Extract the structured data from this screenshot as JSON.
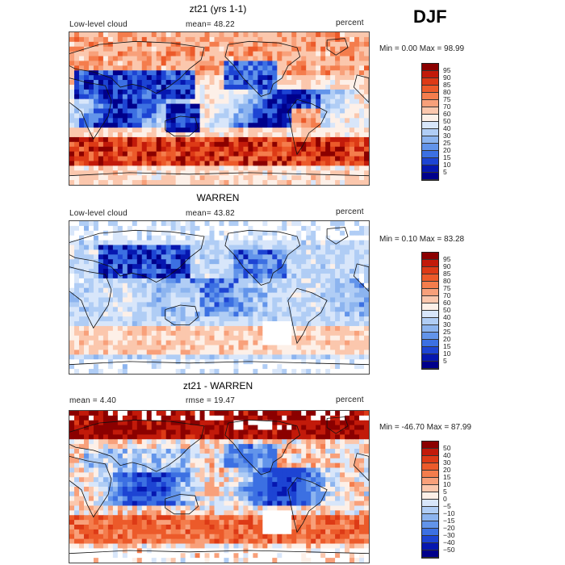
{
  "season": "DJF",
  "panels": [
    {
      "title": "zt21 (yrs 1-1)",
      "left_label": "Low-level cloud",
      "center_label": "mean=  48.22",
      "right_label": "percent",
      "minmax": "Min =   0.00 Max =  98.99",
      "colorbar": {
        "labels": [
          "95",
          "90",
          "85",
          "80",
          "75",
          "70",
          "60",
          "50",
          "40",
          "30",
          "25",
          "20",
          "15",
          "10",
          "5"
        ],
        "colors": [
          "#8b0000",
          "#c21a0a",
          "#dd3a16",
          "#ec5a2a",
          "#f47d4d",
          "#f8a07a",
          "#fbc7ad",
          "#fdf0e8",
          "#d8e6fa",
          "#b0cdf5",
          "#8cb4ef",
          "#6294ea",
          "#3c70e2",
          "#1d44d3",
          "#0617b0",
          "#00008b"
        ]
      },
      "variant": "model"
    },
    {
      "title": "WARREN",
      "left_label": "Low-level cloud",
      "center_label": "mean=  43.82",
      "right_label": "percent",
      "minmax": "Min =   0.10 Max =  83.28",
      "colorbar": {
        "labels": [
          "95",
          "90",
          "85",
          "80",
          "75",
          "70",
          "60",
          "50",
          "40",
          "30",
          "25",
          "20",
          "15",
          "10",
          "5"
        ],
        "colors": [
          "#8b0000",
          "#c21a0a",
          "#dd3a16",
          "#ec5a2a",
          "#f47d4d",
          "#f8a07a",
          "#fbc7ad",
          "#fdf0e8",
          "#d8e6fa",
          "#b0cdf5",
          "#8cb4ef",
          "#6294ea",
          "#3c70e2",
          "#1d44d3",
          "#0617b0",
          "#00008b"
        ]
      },
      "variant": "obs"
    },
    {
      "title": "zt21 - WARREN",
      "left_label": "mean =    4.40",
      "center_label": "rmse =  19.47",
      "right_label": "percent",
      "minmax": "Min = -46.70 Max =  87.99",
      "colorbar": {
        "labels": [
          "50",
          "40",
          "30",
          "20",
          "15",
          "10",
          "5",
          "0",
          "−5",
          "−10",
          "−15",
          "−20",
          "−30",
          "−40",
          "−50"
        ],
        "colors": [
          "#8b0000",
          "#c21a0a",
          "#dd3a16",
          "#ec5a2a",
          "#f47d4d",
          "#f8a07a",
          "#fbc7ad",
          "#fdf0e8",
          "#d8e6fa",
          "#b0cdf5",
          "#8cb4ef",
          "#6294ea",
          "#3c70e2",
          "#1d44d3",
          "#0617b0",
          "#00008b"
        ]
      },
      "variant": "diff"
    }
  ]
}
